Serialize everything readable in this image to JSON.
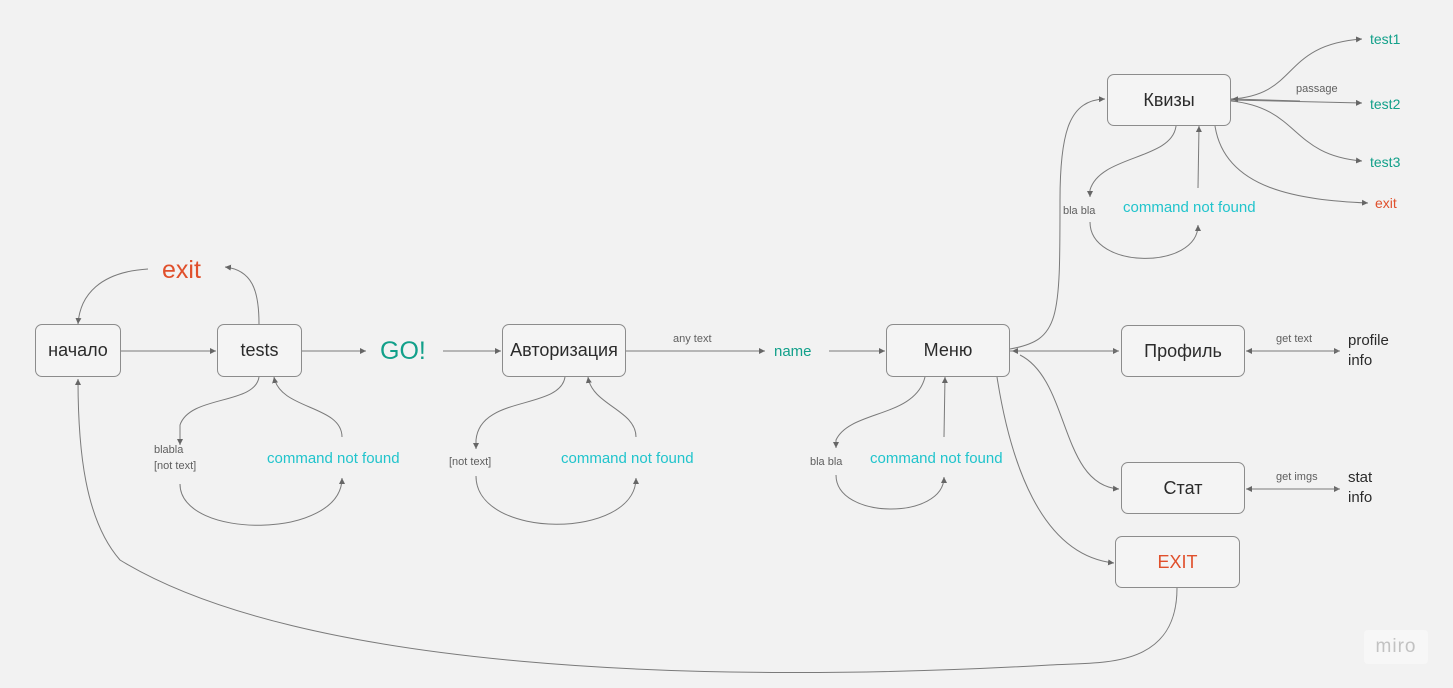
{
  "nodes": {
    "start": "начало",
    "tests": "tests",
    "auth": "Авторизация",
    "menu": "Меню",
    "quizzes": "Квизы",
    "profile": "Профиль",
    "stat": "Стат",
    "exit_box": "EXIT"
  },
  "labels": {
    "exit_top": "exit",
    "go": "GO!",
    "name": "name",
    "any_text": "any text",
    "blabla_1": "blabla",
    "blabla_2": "[not text]",
    "not_text": "[not text]",
    "bla_bla_menu": "bla bla",
    "bla_bla_quiz": "bla bla",
    "cnf_tests": "command not found",
    "cnf_auth": "command not found",
    "cnf_menu": "command not found",
    "cnf_quiz": "command not found",
    "passage": "passage",
    "test1": "test1",
    "test2": "test2",
    "test3": "test3",
    "exit_quiz": "exit",
    "get_text": "get text",
    "profile_info_1": "profile",
    "profile_info_2": "info",
    "get_imgs": "get imgs",
    "stat_info_1": "stat",
    "stat_info_2": "info"
  },
  "watermark": "miro",
  "colors": {
    "background": "#f2f2f2",
    "connector": "#7a7a7a",
    "cyan_label": "#21c4cc",
    "teal_label": "#12a08a",
    "exit_label": "#e0502c"
  }
}
